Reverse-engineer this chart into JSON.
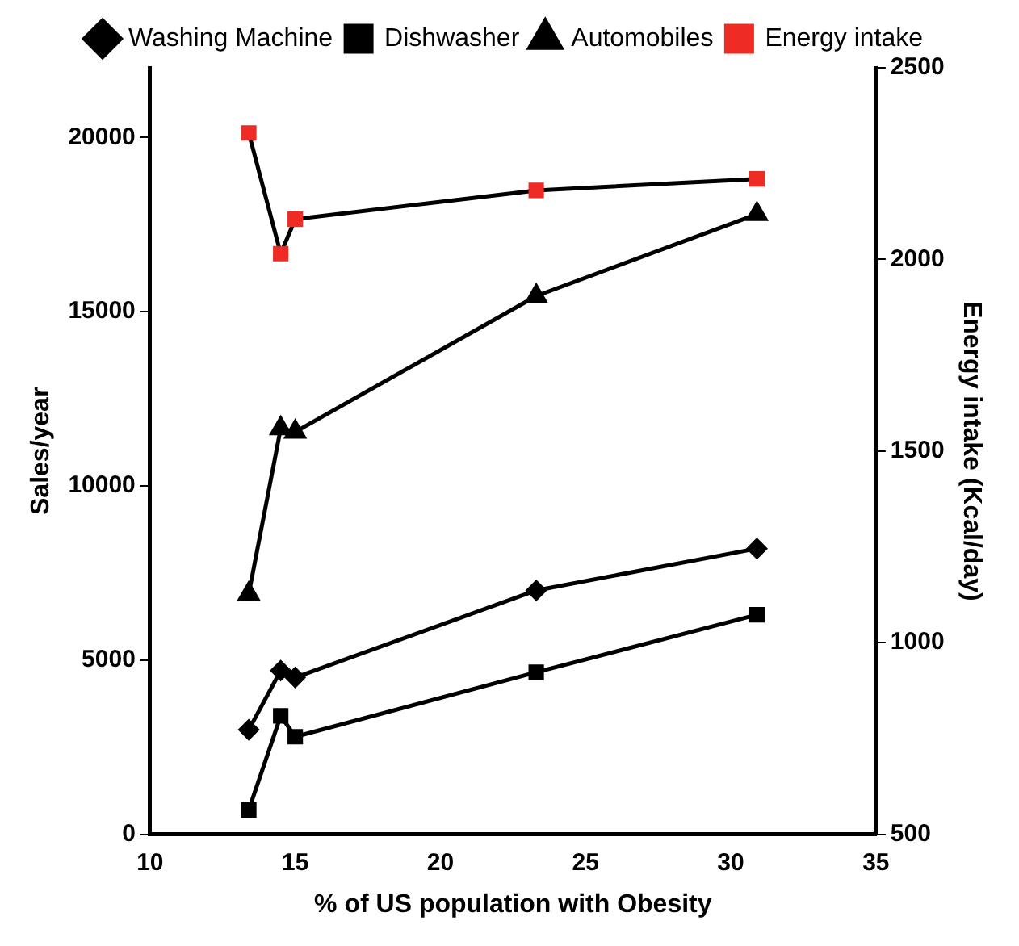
{
  "chart_data": {
    "type": "line",
    "xlabel": "% of US population with Obesity",
    "ylabel": "Sales/year",
    "y2label": "Energy intake (Kcal/day)",
    "x": [
      13.4,
      14.5,
      15.0,
      23.3,
      30.9
    ],
    "series": [
      {
        "name": "Washing Machine",
        "color": "#000000",
        "marker": "diamond",
        "values": [
          3000,
          4700,
          4500,
          7000,
          8200
        ]
      },
      {
        "name": "Dishwasher",
        "color": "#000000",
        "marker": "square",
        "values": [
          700,
          3400,
          2800,
          4650,
          6300
        ]
      },
      {
        "name": "Automobiles",
        "color": "#000000",
        "marker": "triangle",
        "values": [
          6900,
          11650,
          11550,
          15450,
          17800
        ]
      },
      {
        "name": "Energy intake",
        "color": "#ee2b24",
        "marker": "square",
        "axis": "y2",
        "values": [
          2330,
          2015,
          2105,
          2180,
          2210
        ]
      }
    ],
    "xlim": [
      10,
      35
    ],
    "xticks": [
      10,
      15,
      20,
      25,
      30,
      35
    ],
    "ylim": [
      0,
      22000
    ],
    "yticks": [
      0,
      5000,
      10000,
      15000,
      20000
    ],
    "y2lim": [
      500,
      2500
    ],
    "y2ticks": [
      500,
      1000,
      1500,
      2000,
      2500
    ],
    "grid": false,
    "legend": "top"
  }
}
